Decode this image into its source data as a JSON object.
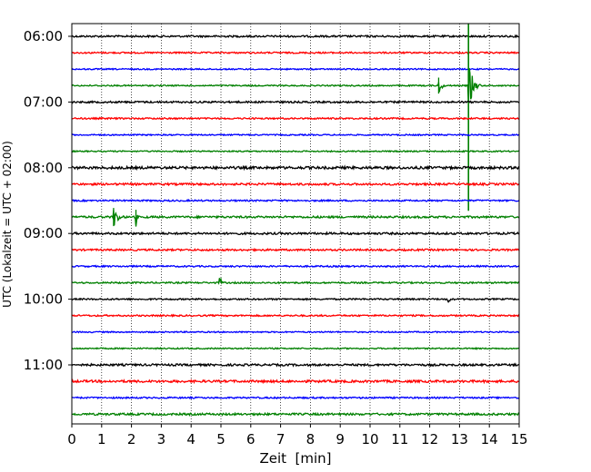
{
  "chart_data": {
    "type": "line",
    "title": "",
    "xlabel": "Zeit  [min]",
    "ylabel": "UTC (Lokalzeit = UTC + 02:00)",
    "xlim": [
      0,
      15
    ],
    "x_ticks": [
      0,
      1,
      2,
      3,
      4,
      5,
      6,
      7,
      8,
      9,
      10,
      11,
      12,
      13,
      14,
      15
    ],
    "y_tick_labels": [
      "06:00",
      "07:00",
      "08:00",
      "09:00",
      "10:00",
      "11:00"
    ],
    "grid": "vertical-dotted",
    "trace_interval_min": 15,
    "first_trace_utc": "06:00",
    "last_trace_utc": "11:45",
    "series": [
      {
        "row_start_utc": "06:00",
        "color": "#000000",
        "amplitude": 0.7
      },
      {
        "row_start_utc": "06:15",
        "color": "#ff0000",
        "amplitude": 0.6
      },
      {
        "row_start_utc": "06:30",
        "color": "#0000ff",
        "amplitude": 0.5
      },
      {
        "row_start_utc": "06:45",
        "color": "#008000",
        "amplitude": 0.5,
        "events": [
          {
            "t": 12.3,
            "peak": 2.2,
            "duration": 0.25
          },
          {
            "t": 13.3,
            "peak": 5,
            "duration": 0.4
          }
        ]
      },
      {
        "row_start_utc": "07:00",
        "color": "#000000",
        "amplitude": 0.7
      },
      {
        "row_start_utc": "07:15",
        "color": "#ff0000",
        "amplitude": 0.6
      },
      {
        "row_start_utc": "07:30",
        "color": "#0000ff",
        "amplitude": 0.5
      },
      {
        "row_start_utc": "07:45",
        "color": "#008000",
        "amplitude": 0.5
      },
      {
        "row_start_utc": "08:00",
        "color": "#000000",
        "amplitude": 1.0
      },
      {
        "row_start_utc": "08:15",
        "color": "#ff0000",
        "amplitude": 0.8
      },
      {
        "row_start_utc": "08:30",
        "color": "#0000ff",
        "amplitude": 0.6
      },
      {
        "row_start_utc": "08:45",
        "color": "#008000",
        "amplitude": 0.8,
        "events": [
          {
            "t": 1.4,
            "peak": 2.5,
            "duration": 0.4
          },
          {
            "t": 2.15,
            "peak": 2.0,
            "duration": 0.1
          }
        ]
      },
      {
        "row_start_utc": "09:00",
        "color": "#000000",
        "amplitude": 0.8
      },
      {
        "row_start_utc": "09:15",
        "color": "#ff0000",
        "amplitude": 0.7
      },
      {
        "row_start_utc": "09:30",
        "color": "#0000ff",
        "amplitude": 0.6
      },
      {
        "row_start_utc": "09:45",
        "color": "#008000",
        "amplitude": 0.6,
        "events": [
          {
            "t": 4.95,
            "peak": 1.5,
            "duration": 0.2
          }
        ]
      },
      {
        "row_start_utc": "10:00",
        "color": "#000000",
        "amplitude": 0.6,
        "events": [
          {
            "t": 12.6,
            "peak": 1.2,
            "duration": 0.2
          }
        ]
      },
      {
        "row_start_utc": "10:15",
        "color": "#ff0000",
        "amplitude": 0.6
      },
      {
        "row_start_utc": "10:30",
        "color": "#0000ff",
        "amplitude": 0.5
      },
      {
        "row_start_utc": "10:45",
        "color": "#008000",
        "amplitude": 0.5
      },
      {
        "row_start_utc": "11:00",
        "color": "#000000",
        "amplitude": 0.8
      },
      {
        "row_start_utc": "11:15",
        "color": "#ff0000",
        "amplitude": 0.9
      },
      {
        "row_start_utc": "11:30",
        "color": "#0000ff",
        "amplitude": 0.6
      },
      {
        "row_start_utc": "11:45",
        "color": "#008000",
        "amplitude": 0.8
      }
    ]
  }
}
